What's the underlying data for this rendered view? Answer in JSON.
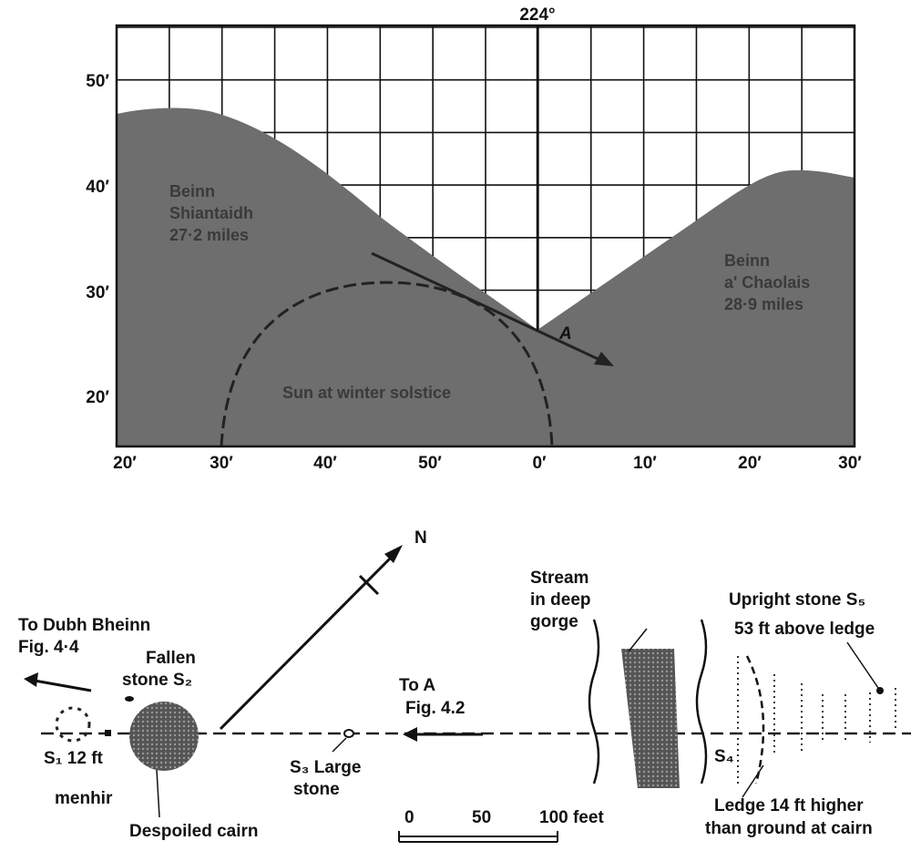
{
  "profile": {
    "bearing": "224°",
    "y_labels": [
      "50′",
      "40′",
      "30′",
      "20′"
    ],
    "x_labels": [
      "20′",
      "30′",
      "40′",
      "50′",
      "0′",
      "10′",
      "20′",
      "30′"
    ],
    "left_mountain": [
      "Beinn",
      "Shiantaidh",
      "27·2 miles"
    ],
    "right_mountain": [
      "Beinn",
      "a' Chaolais",
      "28·9 miles"
    ],
    "sun": "Sun at winter solstice",
    "point": "A"
  },
  "plan": {
    "north": "N",
    "to_dubh": [
      "To Dubh Bheinn",
      "Fig. 4·4"
    ],
    "fallen": [
      "Fallen",
      "stone S₂"
    ],
    "s1": [
      "S₁ 12 ft",
      "menhir"
    ],
    "cairn": "Despoiled cairn",
    "s3": [
      "S₃ Large",
      "stone"
    ],
    "to_a": [
      "To A",
      "Fig. 4.2"
    ],
    "stream": [
      "Stream",
      "in deep",
      "gorge"
    ],
    "upright": [
      "Upright stone S₅",
      "53 ft  above ledge"
    ],
    "s4": "S₄",
    "ledge": [
      "Ledge 14 ft  higher",
      "than ground at cairn"
    ],
    "scale": [
      "0",
      "50",
      "100 feet"
    ]
  }
}
